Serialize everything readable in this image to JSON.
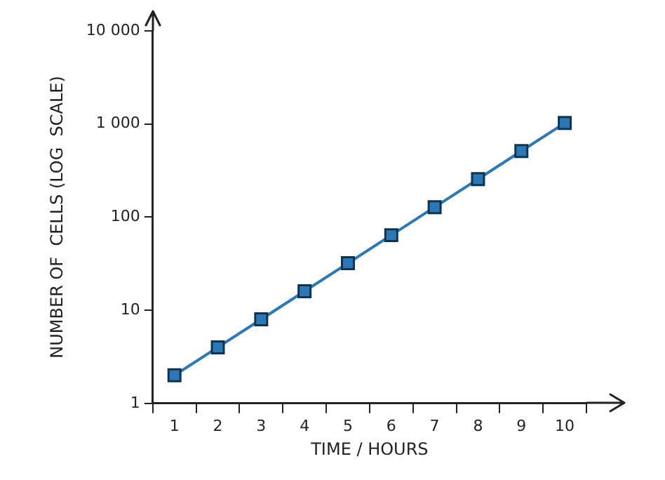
{
  "chart_data": {
    "type": "line",
    "xlabel": "TIME / HOURS",
    "ylabel": "NUMBER OF  CELLS (LOG  SCALE)",
    "categories": [
      "1",
      "2",
      "3",
      "4",
      "5",
      "6",
      "7",
      "8",
      "9",
      "10"
    ],
    "series": [
      {
        "color": "#2a78b8",
        "values": [
          2,
          4,
          8,
          16,
          32,
          64,
          128,
          256,
          512,
          1024
        ]
      }
    ],
    "log": "y",
    "ylim": [
      1,
      10000
    ],
    "yticks": [
      1,
      10,
      100,
      {
        "value": 1000,
        "label": "1 000"
      },
      {
        "value": 10000,
        "label": "10 000"
      }
    ],
    "grid": false,
    "legend": false,
    "marker": "square",
    "line_style": "solid"
  }
}
